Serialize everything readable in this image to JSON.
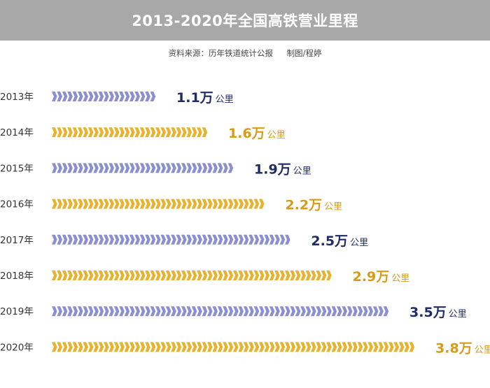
{
  "header": {
    "title": "2013-2020年全国高铁营业里程"
  },
  "source": {
    "text": "资料来源：历年铁道统计公报",
    "author": "制图/程婷"
  },
  "colors": {
    "odd": "#8c8fcf",
    "even": "#e8b22f",
    "label_odd": "#1f2b66",
    "label_even": "#d99a16"
  },
  "chart_data": {
    "type": "bar",
    "orientation": "horizontal",
    "title": "2013-2020年全国高铁营业里程",
    "categories": [
      "2013年",
      "2014年",
      "2015年",
      "2016年",
      "2017年",
      "2018年",
      "2019年",
      "2020年"
    ],
    "values": [
      1.1,
      1.6,
      1.9,
      2.2,
      2.5,
      2.9,
      3.5,
      3.8
    ],
    "value_labels": [
      "1.1万",
      "1.6万",
      "1.9万",
      "2.2万",
      "2.5万",
      "2.9万",
      "3.5万",
      "3.8万"
    ],
    "unit": "公里",
    "xlim": [
      0,
      3.8
    ]
  }
}
